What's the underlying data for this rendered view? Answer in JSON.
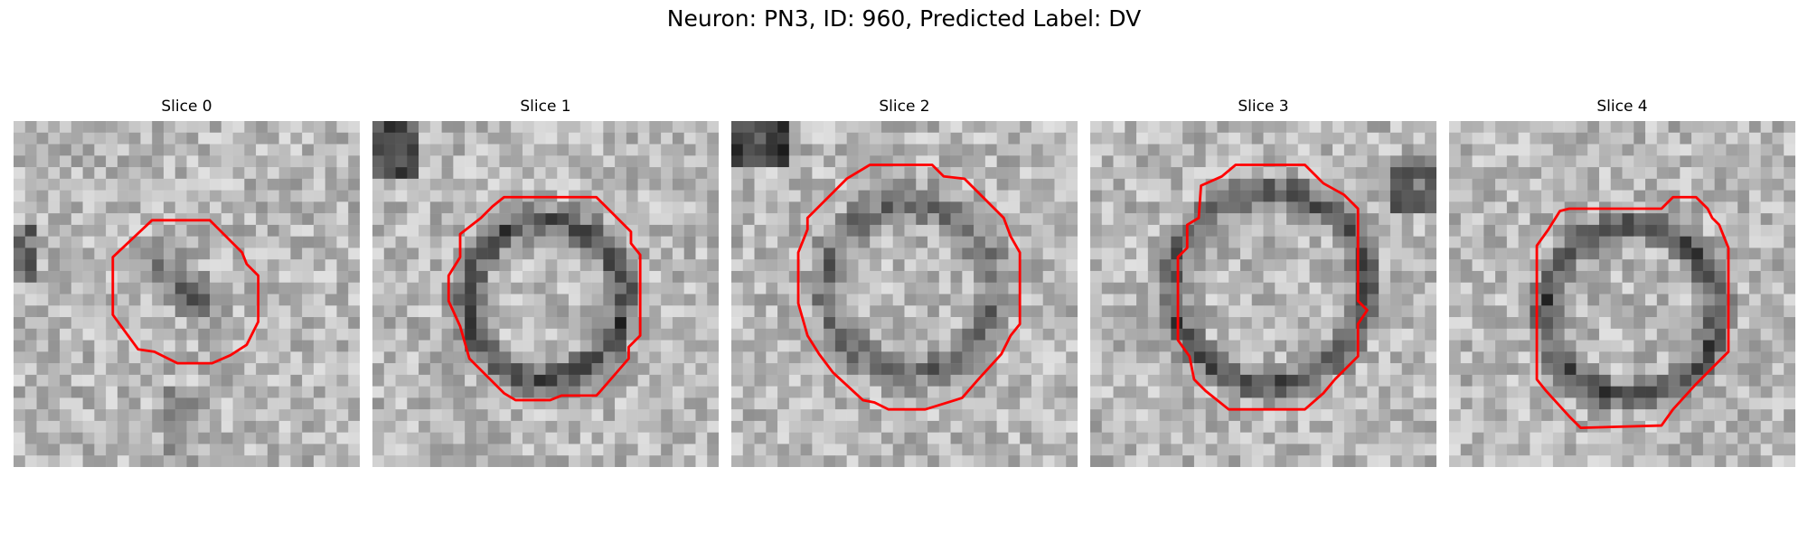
{
  "figure": {
    "title": "Neuron: PN3, ID: 960, Predicted Label: DV"
  },
  "panels": [
    {
      "title": "Slice 0",
      "contour_color": "#ff0000",
      "contour": "diamond-small",
      "dark_blob": "diagonal"
    },
    {
      "title": "Slice 1",
      "contour_color": "#ff0000",
      "contour": "octagon-medium",
      "dark_blob": "ring"
    },
    {
      "title": "Slice 2",
      "contour_color": "#ff0000",
      "contour": "octagon-large",
      "dark_blob": "ring-faint"
    },
    {
      "title": "Slice 3",
      "contour_color": "#ff0000",
      "contour": "octagon-tall",
      "dark_blob": "ring"
    },
    {
      "title": "Slice 4",
      "contour_color": "#ff0000",
      "contour": "octagon-shifted",
      "dark_blob": "ring"
    }
  ]
}
